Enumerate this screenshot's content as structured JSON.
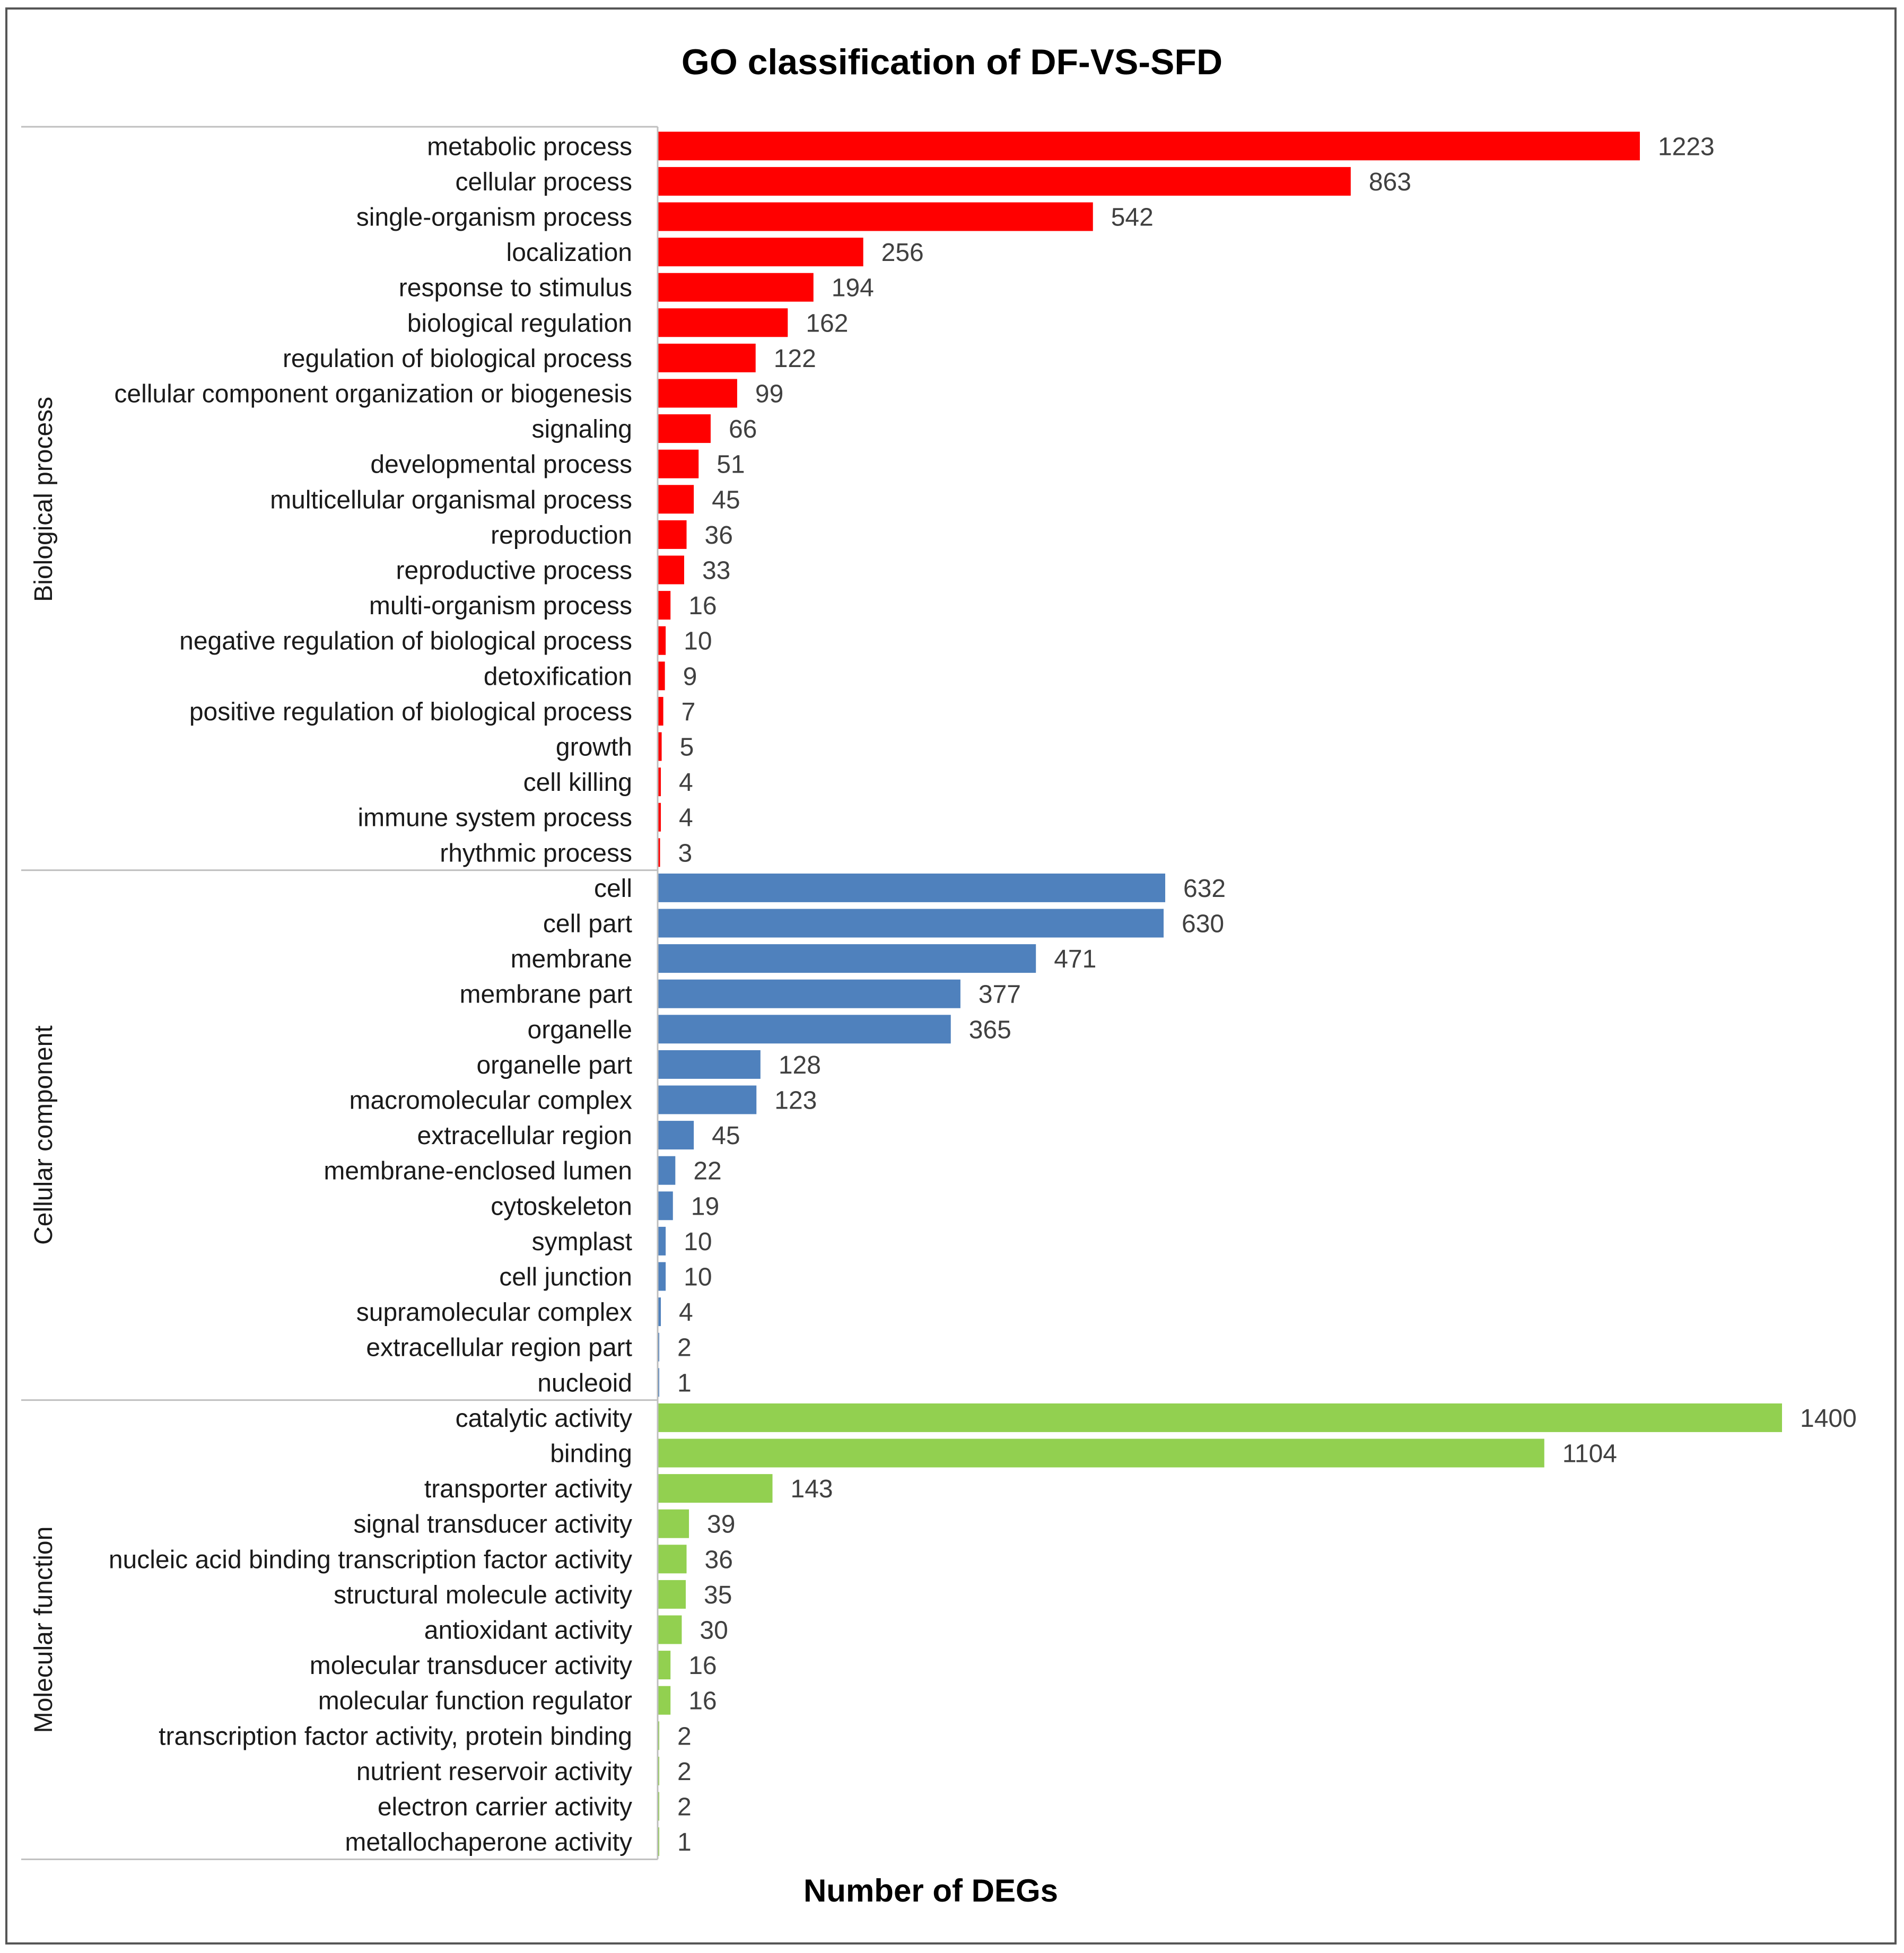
{
  "chart_data": {
    "type": "bar",
    "orientation": "horizontal",
    "title": "GO classification of DF-VS-SFD",
    "xlabel": "Number of DEGs",
    "ylabel": "",
    "xlim": [
      0,
      1400
    ],
    "grid": false,
    "groups": [
      {
        "name": "Biological process",
        "color": "#ff0000",
        "categories": [
          "metabolic process",
          "cellular process",
          "single-organism process",
          "localization",
          "response to stimulus",
          "biological regulation",
          "regulation of biological process",
          "cellular component organization or biogenesis",
          "signaling",
          "developmental process",
          "multicellular organismal process",
          "reproduction",
          "reproductive process",
          "multi-organism process",
          "negative regulation of biological process",
          "detoxification",
          "positive regulation of biological process",
          "growth",
          "cell killing",
          "immune system process",
          "rhythmic process"
        ],
        "values": [
          1223,
          863,
          542,
          256,
          194,
          162,
          122,
          99,
          66,
          51,
          45,
          36,
          33,
          16,
          10,
          9,
          7,
          5,
          4,
          4,
          3
        ]
      },
      {
        "name": "Cellular component",
        "color": "#4f81bd",
        "categories": [
          "cell",
          "cell part",
          "membrane",
          "membrane part",
          "organelle",
          "organelle part",
          "macromolecular complex",
          "extracellular region",
          "membrane-enclosed lumen",
          "cytoskeleton",
          "symplast",
          "cell junction",
          "supramolecular complex",
          "extracellular region part",
          "nucleoid"
        ],
        "values": [
          632,
          630,
          471,
          377,
          365,
          128,
          123,
          45,
          22,
          19,
          10,
          10,
          4,
          2,
          1
        ]
      },
      {
        "name": "Molecular function",
        "color": "#92d050",
        "categories": [
          "catalytic activity",
          "binding",
          "transporter activity",
          "signal transducer activity",
          "nucleic acid binding transcription factor activity",
          "structural molecule activity",
          "antioxidant activity",
          "molecular transducer activity",
          "molecular function regulator",
          "transcription factor activity, protein binding",
          "nutrient reservoir activity",
          "electron carrier activity",
          "metallochaperone activity"
        ],
        "values": [
          1400,
          1104,
          143,
          39,
          36,
          35,
          30,
          16,
          16,
          2,
          2,
          2,
          1
        ]
      }
    ]
  }
}
